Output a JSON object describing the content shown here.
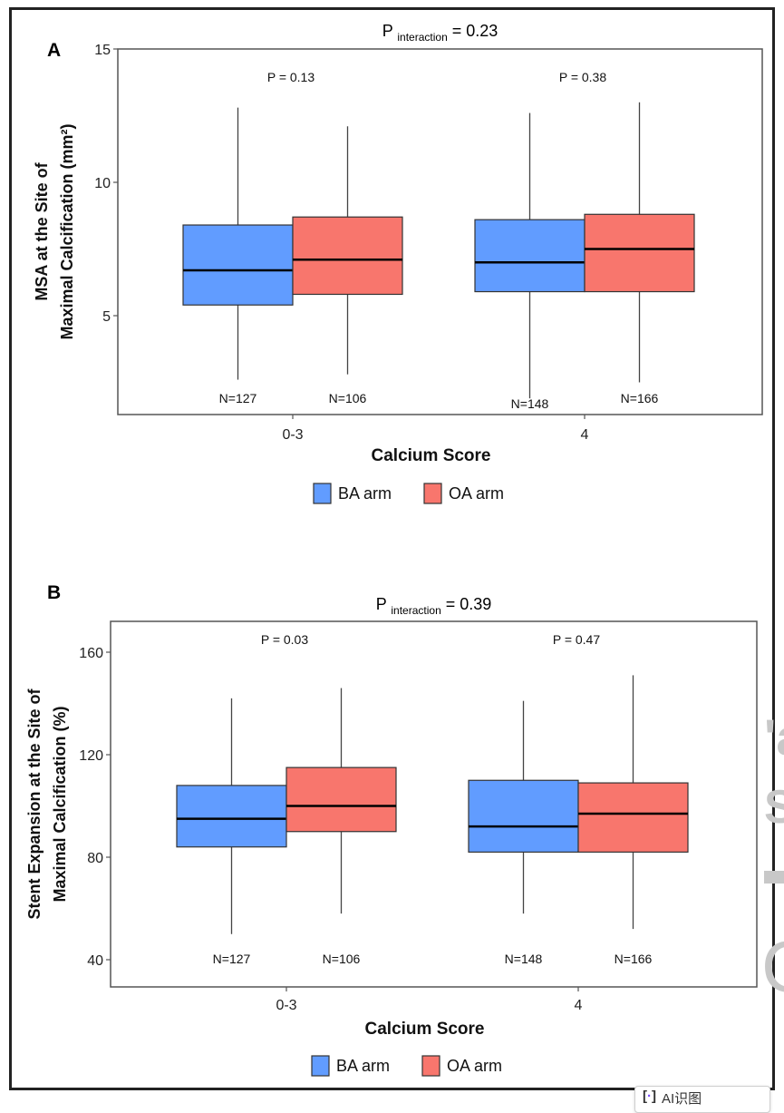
{
  "figure": {
    "colors": {
      "BA": "#619CFF",
      "OA": "#F8766D",
      "axis": "#555555",
      "median": "#000000",
      "box_border": "#333333"
    },
    "watermark": {
      "glyphs": [
        "'a",
        "S",
        "—",
        "C"
      ]
    },
    "overlay_button": {
      "label": "AI识图",
      "icon": "scan-icon"
    }
  },
  "chart_data": [
    {
      "panel_label": "A",
      "type": "box",
      "title_prefix": "P",
      "title_sub": "interaction",
      "title_suffix": "= 0.23",
      "xlabel": "Calcium Score",
      "ylabel_line1": "MSA at the Site of",
      "ylabel_line2": "Maximal Calcification (mm²)",
      "ylim": [
        1.3,
        15
      ],
      "yticks": [
        5,
        10,
        15
      ],
      "categories": [
        "0-3",
        "4"
      ],
      "group_pvalues": [
        "P = 0.13",
        "P = 0.38"
      ],
      "legend": {
        "position": "bottom",
        "entries": [
          {
            "key": "BA",
            "label": "BA arm"
          },
          {
            "key": "OA",
            "label": "OA arm"
          }
        ]
      },
      "series": [
        {
          "name": "BA arm",
          "key": "BA",
          "boxes": [
            {
              "category": "0-3",
              "min": 2.6,
              "q1": 5.4,
              "median": 6.7,
              "q3": 8.4,
              "max": 12.8,
              "n_label": "N=127"
            },
            {
              "category": "4",
              "min": 1.9,
              "q1": 5.9,
              "median": 7.0,
              "q3": 8.6,
              "max": 12.6,
              "n_label": "N=148"
            }
          ]
        },
        {
          "name": "OA arm",
          "key": "OA",
          "boxes": [
            {
              "category": "0-3",
              "min": 2.8,
              "q1": 5.8,
              "median": 7.1,
              "q3": 8.7,
              "max": 12.1,
              "n_label": "N=106"
            },
            {
              "category": "4",
              "min": 2.5,
              "q1": 5.9,
              "median": 7.5,
              "q3": 8.8,
              "max": 13.0,
              "n_label": "N=166"
            }
          ]
        }
      ]
    },
    {
      "panel_label": "B",
      "type": "box",
      "title_prefix": "P",
      "title_sub": "interaction",
      "title_suffix": "= 0.39",
      "xlabel": "Calcium Score",
      "ylabel_line1": "Stent Expansion at the Site of",
      "ylabel_line2": "Maximal Calcification (%)",
      "ylim": [
        29.5,
        172
      ],
      "yticks": [
        40,
        80,
        120,
        160
      ],
      "categories": [
        "0-3",
        "4"
      ],
      "group_pvalues": [
        "P = 0.03",
        "P = 0.47"
      ],
      "legend": {
        "position": "bottom",
        "entries": [
          {
            "key": "BA",
            "label": "BA arm"
          },
          {
            "key": "OA",
            "label": "OA arm"
          }
        ]
      },
      "series": [
        {
          "name": "BA arm",
          "key": "BA",
          "boxes": [
            {
              "category": "0-3",
              "min": 50,
              "q1": 84,
              "median": 95,
              "q3": 108,
              "max": 142,
              "n_label": "N=127"
            },
            {
              "category": "4",
              "min": 58,
              "q1": 82,
              "median": 92,
              "q3": 110,
              "max": 141,
              "n_label": "N=148"
            }
          ]
        },
        {
          "name": "OA arm",
          "key": "OA",
          "boxes": [
            {
              "category": "0-3",
              "min": 58,
              "q1": 90,
              "median": 100,
              "q3": 115,
              "max": 146,
              "n_label": "N=106"
            },
            {
              "category": "4",
              "min": 52,
              "q1": 82,
              "median": 97,
              "q3": 109,
              "max": 151,
              "n_label": "N=166"
            }
          ]
        }
      ]
    }
  ]
}
